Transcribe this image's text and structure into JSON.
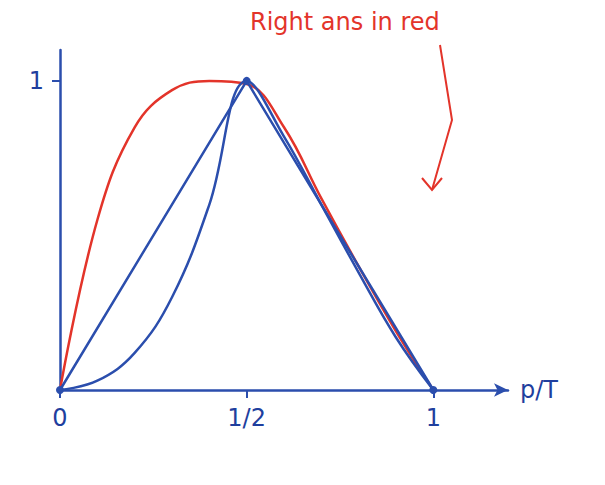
{
  "chart_data": {
    "type": "line",
    "annotation": {
      "text": "Right ans in red",
      "color": "#e3342a"
    },
    "x_label": "p/T",
    "xlim": [
      0,
      1.2
    ],
    "xticks": [
      0,
      {
        "value": 0.5,
        "label": "1/2"
      },
      1
    ],
    "ylim": [
      0,
      1.1
    ],
    "yticks": [
      1
    ],
    "grid": false,
    "series": [
      {
        "color": "#e3342a",
        "line_style": "smooth",
        "marker": "none",
        "x": [
          0,
          0.1,
          0.2,
          0.3,
          0.4,
          0.5,
          0.6,
          0.7,
          0.8,
          0.9,
          1
        ],
        "values": [
          0,
          0.55,
          0.85,
          0.97,
          1.0,
          0.99,
          0.85,
          0.62,
          0.4,
          0.19,
          0
        ]
      },
      {
        "color": "#2b4ead",
        "line_style": "straight",
        "marker": "circle",
        "x": [
          0,
          0.5,
          1
        ],
        "values": [
          0,
          1,
          0
        ]
      },
      {
        "color": "#2b4ead",
        "line_style": "smooth",
        "marker": "none",
        "x": [
          0,
          0.1,
          0.2,
          0.3,
          0.4,
          0.5,
          0.6,
          0.7,
          0.8,
          0.9,
          1
        ],
        "values": [
          0,
          0.03,
          0.12,
          0.3,
          0.6,
          1,
          0.82,
          0.6,
          0.38,
          0.17,
          0
        ]
      }
    ]
  }
}
